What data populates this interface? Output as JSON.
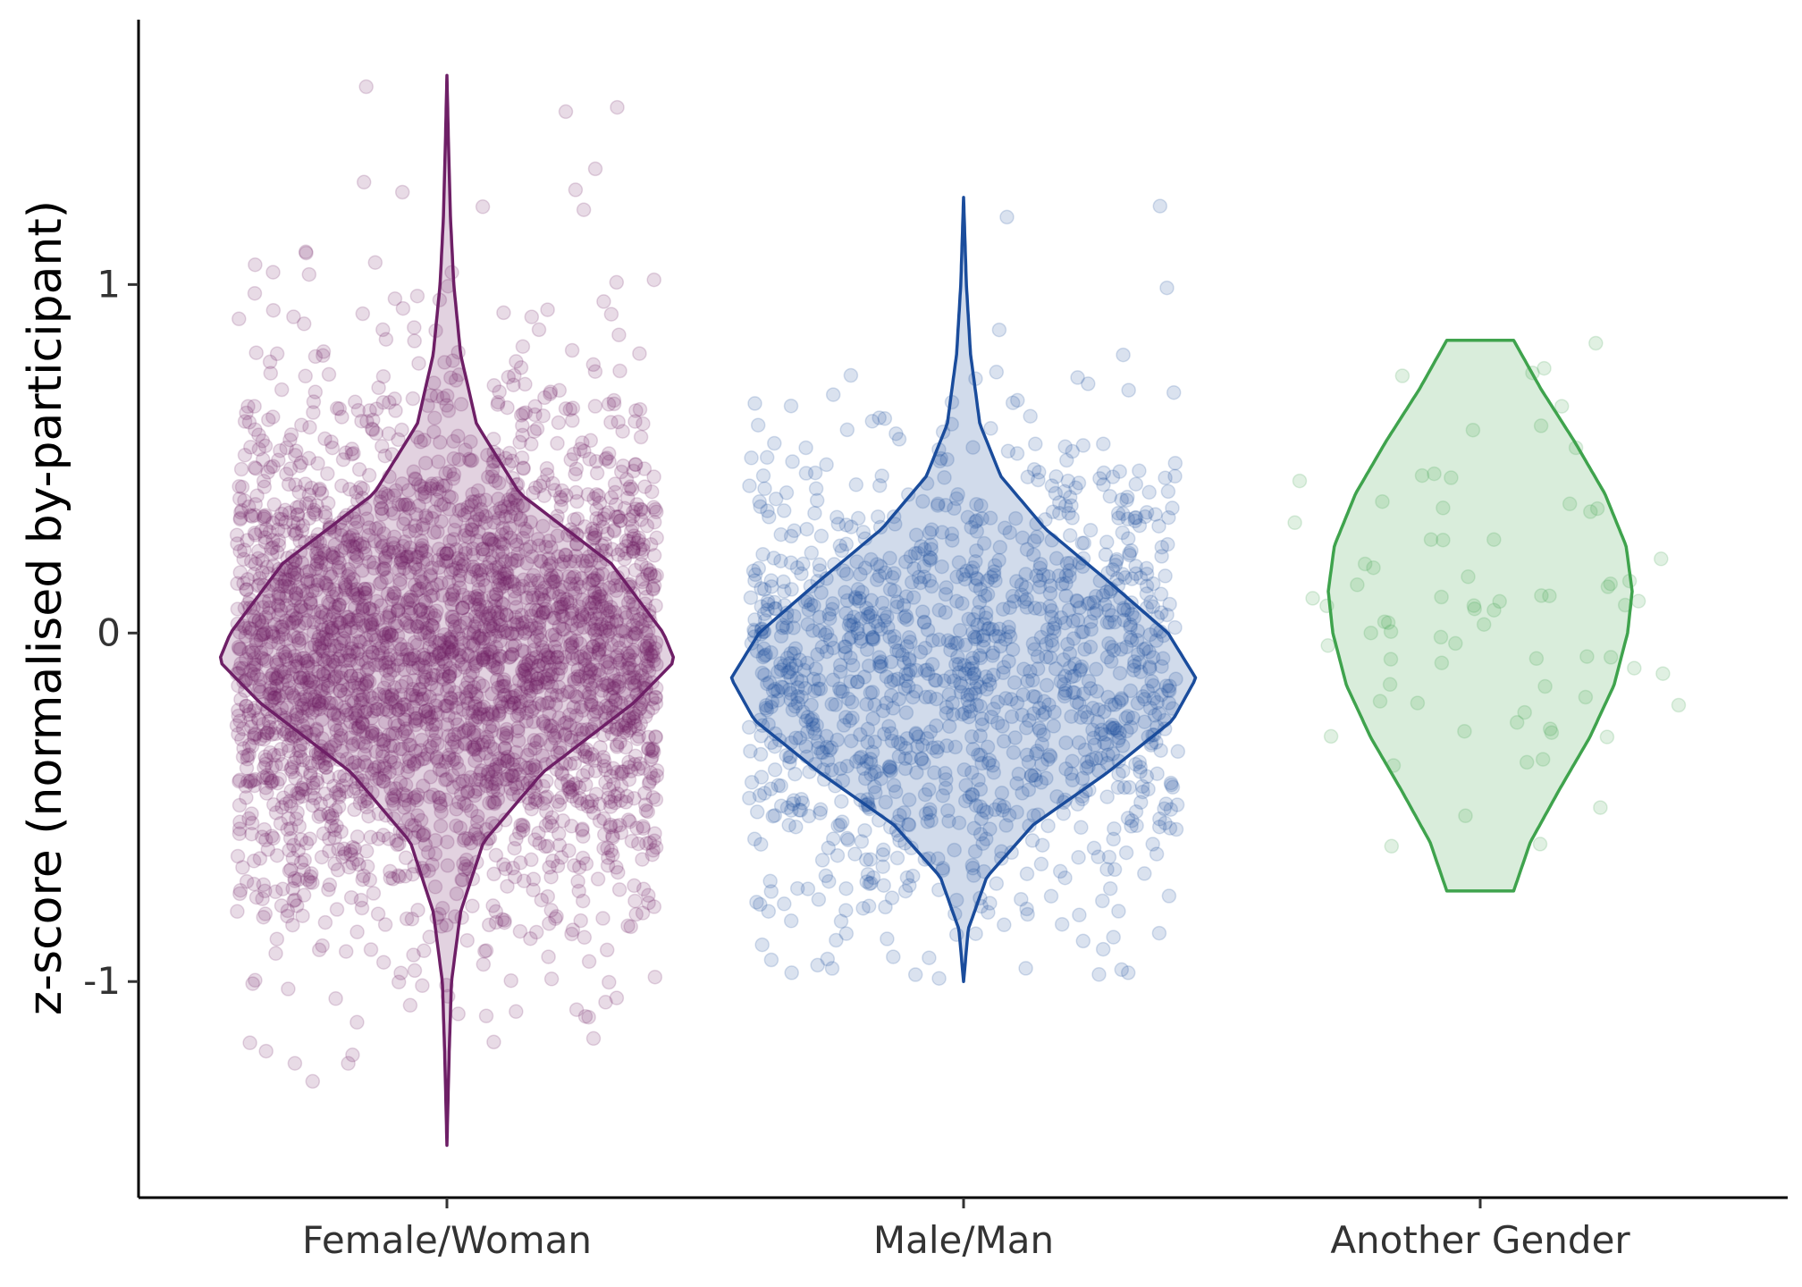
{
  "chart_data": {
    "type": "violin",
    "title": "",
    "xlabel": "",
    "ylabel": "z-score (normalised by-participant)",
    "ylim": [
      -1.62,
      1.76
    ],
    "yticks": [
      -1,
      0,
      1
    ],
    "ytick_labels": [
      "-1",
      "0",
      "1"
    ],
    "grid": false,
    "legend": "none",
    "categories": [
      "Female/Woman",
      "Male/Man",
      "Another Gender"
    ],
    "series": [
      {
        "category": "Female/Woman",
        "color": "#6E1F66",
        "n_points_approx": 5000,
        "min": -1.47,
        "max": 1.6,
        "mode": -0.08,
        "violin_halfwidth": [
          [
            -1.47,
            0.0
          ],
          [
            -1.2,
            0.01
          ],
          [
            -1.0,
            0.02
          ],
          [
            -0.8,
            0.06
          ],
          [
            -0.6,
            0.16
          ],
          [
            -0.4,
            0.42
          ],
          [
            -0.2,
            0.82
          ],
          [
            -0.08,
            1.0
          ],
          [
            0.0,
            0.95
          ],
          [
            0.2,
            0.72
          ],
          [
            0.4,
            0.32
          ],
          [
            0.6,
            0.13
          ],
          [
            0.8,
            0.06
          ],
          [
            1.0,
            0.03
          ],
          [
            1.2,
            0.015
          ],
          [
            1.4,
            0.007
          ],
          [
            1.6,
            0.0
          ]
        ]
      },
      {
        "category": "Male/Man",
        "color": "#1A4C9C",
        "n_points_approx": 1400,
        "min": -1.0,
        "max": 1.25,
        "mode": -0.13,
        "violin_halfwidth": [
          [
            -1.0,
            0.0
          ],
          [
            -0.85,
            0.02
          ],
          [
            -0.7,
            0.1
          ],
          [
            -0.55,
            0.3
          ],
          [
            -0.4,
            0.62
          ],
          [
            -0.25,
            0.9
          ],
          [
            -0.13,
            1.0
          ],
          [
            0.0,
            0.88
          ],
          [
            0.15,
            0.62
          ],
          [
            0.3,
            0.35
          ],
          [
            0.45,
            0.16
          ],
          [
            0.6,
            0.07
          ],
          [
            0.8,
            0.03
          ],
          [
            1.0,
            0.012
          ],
          [
            1.25,
            0.0
          ]
        ]
      },
      {
        "category": "Another Gender",
        "color": "#3FA34D",
        "n_points_approx": 80,
        "min": -0.74,
        "max": 0.84,
        "mode": 0.12,
        "violin_halfwidth": [
          [
            -0.74,
            0.22
          ],
          [
            -0.6,
            0.33
          ],
          [
            -0.45,
            0.52
          ],
          [
            -0.3,
            0.72
          ],
          [
            -0.15,
            0.88
          ],
          [
            0.0,
            0.97
          ],
          [
            0.12,
            1.0
          ],
          [
            0.25,
            0.96
          ],
          [
            0.4,
            0.82
          ],
          [
            0.55,
            0.62
          ],
          [
            0.7,
            0.4
          ],
          [
            0.84,
            0.22
          ]
        ]
      }
    ]
  }
}
